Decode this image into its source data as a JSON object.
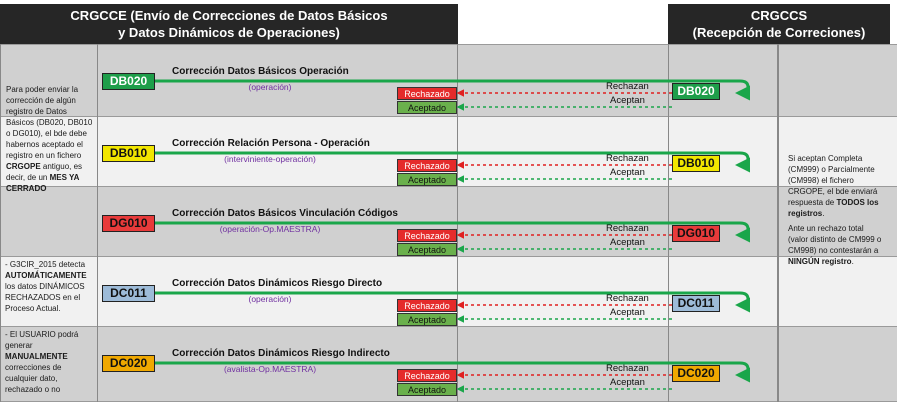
{
  "headers": {
    "left_line1": "CRGCCE (Envío de Correcciones de Datos Básicos",
    "left_line2": "y Datos Dinámicos de Operaciones)",
    "right_line1": "CRGCCS",
    "right_line2": "(Recepción de Correciones)"
  },
  "colors": {
    "header_bg": "#262626",
    "band_dark": "#d0d0d0",
    "band_light": "#f1f1f1",
    "green_line": "#1aa64a",
    "red_arrow": "#e02020",
    "green_arrow": "#1aa64a",
    "sub_text": "#7030a0"
  },
  "left_notes": {
    "note1": [
      {
        "t": "Para poder enviar la corrección de algún registro de Datos Básicos (DB020, DB010 o DG010), el bde debe habernos aceptado el registro en un fichero ",
        "b": false
      },
      {
        "t": "CRGOPE",
        "b": true
      },
      {
        "t": " antiguo, es decir, de un ",
        "b": false
      },
      {
        "t": "MES YA CERRADO",
        "b": true
      }
    ],
    "note2": [
      {
        "t": "- G3CIR_2015 detecta ",
        "b": false
      },
      {
        "t": "AUTOMÁTICAMENTE",
        "b": true
      },
      {
        "t": " los datos DINÁMICOS RECHAZADOS en el Proceso Actual.",
        "b": false
      }
    ],
    "note3": [
      {
        "t": "- El USUARIO podrá generar ",
        "b": false
      },
      {
        "t": "MANUALMENTE",
        "b": true
      },
      {
        "t": " correcciones de cualquier dato, rechazado o no",
        "b": false
      }
    ]
  },
  "right_notes": {
    "note1": [
      {
        "t": "Si aceptan Completa (CM999) o Parcialmente (CM998) el fichero CRGOPE, el bde enviará respuesta de ",
        "b": false
      },
      {
        "t": "TODOS los registros",
        "b": true
      },
      {
        "t": ".",
        "b": false
      }
    ],
    "note2": [
      {
        "t": "Ante un rechazo total (valor distinto de CM999 o CM998) no contestarán a ",
        "b": false
      },
      {
        "t": "NINGÚN registro",
        "b": true
      },
      {
        "t": ".",
        "b": false
      }
    ]
  },
  "rows": [
    {
      "code": "DB020",
      "color": "#1e9e4a",
      "text_white": true,
      "title": "Corrección Datos Básicos Operación",
      "subtitle": "(operación)",
      "rejected_label": "Rechazado",
      "accepted_label": "Aceptado",
      "reject_arrow_label": "Rechazan",
      "accept_arrow_label": "Aceptan"
    },
    {
      "code": "DB010",
      "color": "#f2e600",
      "text_white": false,
      "title": "Corrección Relación Persona - Operación",
      "subtitle": "(interviniente-operación)",
      "rejected_label": "Rechazado",
      "accepted_label": "Aceptado",
      "reject_arrow_label": "Rechazan",
      "accept_arrow_label": "Aceptan"
    },
    {
      "code": "DG010",
      "color": "#e83a3a",
      "text_white": false,
      "title": "Corrección Datos Básicos Vinculación Códigos",
      "subtitle": "(operación-Op.MAESTRA)",
      "rejected_label": "Rechazado",
      "accepted_label": "Aceptado",
      "reject_arrow_label": "Rechazan",
      "accept_arrow_label": "Aceptan"
    },
    {
      "code": "DC011",
      "color": "#9dbbd8",
      "text_white": false,
      "title": "Corrección Datos Dinámicos Riesgo Directo",
      "subtitle": "(operación)",
      "rejected_label": "Rechazado",
      "accepted_label": "Aceptado",
      "reject_arrow_label": "Rechazan",
      "accept_arrow_label": "Aceptan"
    },
    {
      "code": "DC020",
      "color": "#f0a800",
      "text_white": false,
      "title": "Corrección Datos Dinámicos Riesgo Indirecto",
      "subtitle": "(avalista-Op.MAESTRA)",
      "rejected_label": "Rechazado",
      "accepted_label": "Aceptado",
      "reject_arrow_label": "Rechazan",
      "accept_arrow_label": "Aceptan"
    }
  ]
}
